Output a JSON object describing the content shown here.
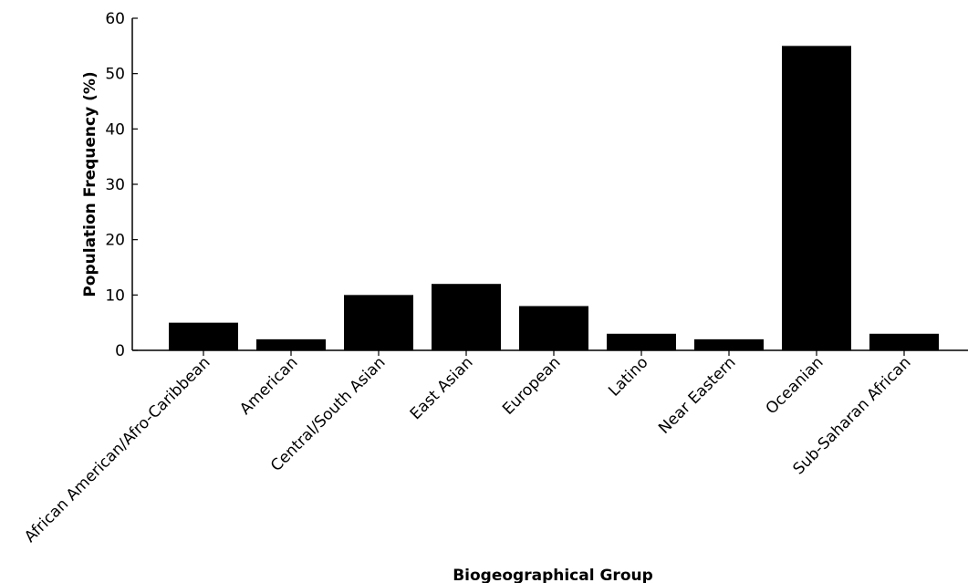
{
  "chart_data": {
    "type": "bar",
    "title": "",
    "xlabel": "Biogeographical Group",
    "ylabel": "Population Frequency (%)",
    "ylim": [
      0,
      60
    ],
    "yticks": [
      0,
      10,
      20,
      30,
      40,
      50,
      60
    ],
    "grid": false,
    "legend": "none",
    "bar_color": "#000000",
    "categories": [
      "African American/Afro-Caribbean",
      "American",
      "Central/South Asian",
      "East Asian",
      "European",
      "Latino",
      "Near Eastern",
      "Oceanian",
      "Sub-Saharan African"
    ],
    "values": [
      5,
      2,
      10,
      12,
      8,
      3,
      2,
      55,
      3
    ]
  }
}
